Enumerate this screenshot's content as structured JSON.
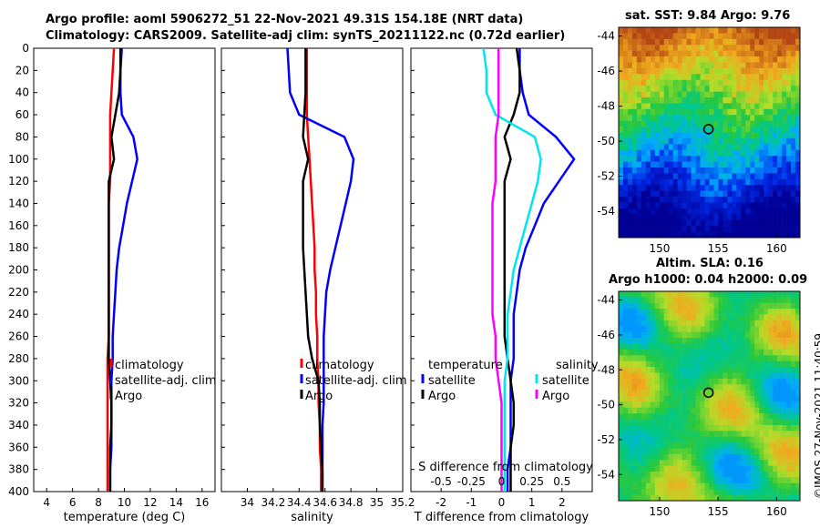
{
  "title": {
    "line1": "Argo profile: aoml 5906272_51 22-Nov-2021 49.31S 154.18E (NRT data)",
    "line2": "Climatology: CARS2009. Satellite-adj clim: synTS_20211122.nc (0.72d earlier)"
  },
  "map_sst_title": "sat. SST: 9.84 Argo: 9.76",
  "map_sla_title1": "Altim. SLA: 0.16",
  "map_sla_title2": "Argo h1000: 0.04 h2000: 0.09",
  "credit": "©IMOS 27-Nov-2021 11:40:59",
  "chart_data": [
    {
      "type": "line",
      "name": "temperature",
      "xlabel": "temperature (deg C)",
      "ylabel": "",
      "xlim": [
        3,
        17
      ],
      "ylim": [
        400,
        0
      ],
      "xticks": [
        "4",
        "6",
        "8",
        "10",
        "12",
        "14",
        "16"
      ],
      "xtick_values": [
        4,
        6,
        8,
        10,
        12,
        14,
        16
      ],
      "yticks": [
        0,
        20,
        40,
        60,
        80,
        100,
        120,
        140,
        160,
        180,
        200,
        220,
        240,
        260,
        280,
        300,
        320,
        340,
        360,
        380,
        400
      ],
      "legend": [
        "climatology",
        "satellite-adj. clim",
        "Argo"
      ],
      "series": [
        {
          "name": "climatology",
          "color": "#ff0000",
          "x": [
            9.2,
            9.1,
            9.0,
            8.9,
            8.9,
            8.9,
            8.9,
            8.8,
            8.8,
            8.8,
            8.8,
            8.8,
            8.8,
            8.8,
            8.7,
            8.7,
            8.7,
            8.7,
            8.7,
            8.7,
            8.7
          ],
          "y": [
            0,
            20,
            40,
            60,
            80,
            100,
            120,
            140,
            160,
            180,
            200,
            220,
            240,
            260,
            280,
            300,
            320,
            340,
            360,
            380,
            400
          ]
        },
        {
          "name": "satellite-adj. clim",
          "color": "#0000ff",
          "x": [
            9.8,
            9.7,
            9.7,
            9.8,
            10.7,
            11.0,
            10.6,
            10.2,
            9.9,
            9.6,
            9.4,
            9.3,
            9.2,
            9.1,
            9.1,
            9.0,
            9.0,
            9.0,
            9.0,
            8.9,
            8.9
          ],
          "y": [
            0,
            20,
            40,
            60,
            80,
            100,
            120,
            140,
            160,
            180,
            200,
            220,
            240,
            260,
            280,
            300,
            320,
            340,
            360,
            380,
            400
          ]
        },
        {
          "name": "Argo",
          "color": "#000000",
          "x": [
            9.7,
            9.7,
            9.6,
            9.3,
            9.0,
            9.2,
            8.8,
            8.8,
            8.8,
            8.8,
            8.8,
            8.8,
            8.8,
            8.8,
            8.8,
            8.9,
            9.0,
            9.0,
            8.9,
            8.9,
            8.9
          ],
          "y": [
            0,
            20,
            40,
            60,
            80,
            100,
            120,
            140,
            160,
            180,
            200,
            220,
            240,
            260,
            280,
            300,
            320,
            340,
            360,
            380,
            400
          ]
        }
      ]
    },
    {
      "type": "line",
      "name": "salinity",
      "xlabel": "salinity",
      "ylabel": "",
      "xlim": [
        33.8,
        35.2
      ],
      "ylim": [
        400,
        0
      ],
      "xticks": [
        "34",
        "34.2",
        "34.4",
        "34.6",
        "34.8",
        "35",
        "35.2"
      ],
      "xtick_values": [
        34,
        34.2,
        34.4,
        34.6,
        34.8,
        35,
        35.2
      ],
      "legend": [
        "climatology",
        "satellite-adj. clim",
        "Argo"
      ],
      "series": [
        {
          "name": "climatology",
          "color": "#ff0000",
          "x": [
            34.46,
            34.46,
            34.46,
            34.46,
            34.47,
            34.48,
            34.49,
            34.5,
            34.51,
            34.52,
            34.52,
            34.53,
            34.53,
            34.54,
            34.54,
            34.55,
            34.55,
            34.56,
            34.56,
            34.57,
            34.57
          ],
          "y": [
            0,
            20,
            40,
            60,
            80,
            100,
            120,
            140,
            160,
            180,
            200,
            220,
            240,
            260,
            280,
            300,
            320,
            340,
            360,
            380,
            400
          ]
        },
        {
          "name": "satellite-adj. clim",
          "color": "#0000ff",
          "x": [
            34.31,
            34.32,
            34.33,
            34.4,
            34.75,
            34.82,
            34.8,
            34.76,
            34.72,
            34.68,
            34.64,
            34.61,
            34.6,
            34.59,
            34.59,
            34.59,
            34.59,
            34.58,
            34.58,
            34.58,
            34.58
          ],
          "y": [
            0,
            20,
            40,
            60,
            80,
            100,
            120,
            140,
            160,
            180,
            200,
            220,
            240,
            260,
            280,
            300,
            320,
            340,
            360,
            380,
            400
          ]
        },
        {
          "name": "Argo",
          "color": "#000000",
          "x": [
            34.45,
            34.45,
            34.45,
            34.44,
            34.43,
            34.47,
            34.43,
            34.43,
            34.43,
            34.43,
            34.44,
            34.45,
            34.46,
            34.47,
            34.5,
            34.55,
            34.56,
            34.56,
            34.57,
            34.58,
            34.58
          ],
          "y": [
            0,
            20,
            40,
            60,
            80,
            100,
            120,
            140,
            160,
            180,
            200,
            220,
            240,
            260,
            280,
            300,
            320,
            340,
            360,
            380,
            400
          ]
        }
      ]
    },
    {
      "type": "line",
      "name": "difference",
      "xlabel": "T difference from climatology",
      "xlabel_top": "S difference from climatology",
      "xlim": [
        -3,
        3
      ],
      "ylim": [
        400,
        0
      ],
      "xticks": [
        "-2",
        "-1",
        "0",
        "1",
        "2"
      ],
      "xtick_values": [
        -2,
        -1,
        0,
        1,
        2
      ],
      "xticks_top": [
        "-0.5",
        "-0.25",
        "0",
        "0.25",
        "0.5"
      ],
      "xtick_top_values": [
        -2,
        -1,
        0,
        1,
        2
      ],
      "legend_temperature_title": "temperature",
      "legend_salinity_title": "salinity",
      "legend_temperature": [
        "satellite",
        "Argo"
      ],
      "legend_salinity": [
        "satellite",
        "Argo"
      ],
      "series": [
        {
          "name": "T satellite",
          "color": "#0000ff",
          "x": [
            0.6,
            0.6,
            0.7,
            0.9,
            1.8,
            2.4,
            1.9,
            1.4,
            1.1,
            0.8,
            0.6,
            0.5,
            0.4,
            0.4,
            0.4,
            0.3,
            0.3,
            0.3,
            0.3,
            0.2,
            0.2
          ],
          "y": [
            0,
            20,
            40,
            60,
            80,
            100,
            120,
            140,
            160,
            180,
            200,
            220,
            240,
            260,
            280,
            300,
            320,
            340,
            360,
            380,
            400
          ]
        },
        {
          "name": "T Argo",
          "color": "#000000",
          "x": [
            0.5,
            0.6,
            0.6,
            0.4,
            0.1,
            0.3,
            0.1,
            0.1,
            0.1,
            0.1,
            0.1,
            0.1,
            0.1,
            0.1,
            0.2,
            0.3,
            0.4,
            0.4,
            0.3,
            0.3,
            0.3
          ],
          "y": [
            0,
            20,
            40,
            60,
            80,
            100,
            120,
            140,
            160,
            180,
            200,
            220,
            240,
            260,
            280,
            300,
            320,
            340,
            360,
            380,
            400
          ]
        },
        {
          "name": "S satellite",
          "color": "#00e5ee",
          "x": [
            -0.6,
            -0.5,
            -0.5,
            -0.2,
            1.1,
            1.3,
            1.2,
            1.0,
            0.8,
            0.6,
            0.4,
            0.3,
            0.2,
            0.2,
            0.2,
            0.1,
            0.1,
            0.1,
            0.1,
            0.1,
            0.1
          ],
          "y": [
            0,
            20,
            40,
            60,
            80,
            100,
            120,
            140,
            160,
            180,
            200,
            220,
            240,
            260,
            280,
            300,
            320,
            340,
            360,
            380,
            400
          ]
        },
        {
          "name": "S Argo",
          "color": "#ff00ff",
          "x": [
            -0.1,
            -0.1,
            -0.1,
            -0.1,
            -0.2,
            -0.2,
            -0.2,
            -0.3,
            -0.3,
            -0.3,
            -0.3,
            -0.3,
            -0.3,
            -0.2,
            -0.2,
            -0.1,
            0.0,
            0.0,
            0.0,
            0.0,
            0.0
          ],
          "y": [
            0,
            20,
            40,
            60,
            80,
            100,
            120,
            140,
            160,
            180,
            200,
            220,
            240,
            260,
            280,
            300,
            320,
            340,
            360,
            380,
            400
          ]
        }
      ]
    },
    {
      "type": "heatmap",
      "name": "sst_map",
      "title": "sat. SST: 9.84 Argo: 9.76",
      "xlim": [
        146.5,
        162
      ],
      "ylim": [
        -55.5,
        -43.5
      ],
      "xticks": [
        "150",
        "155",
        "160"
      ],
      "xtick_values": [
        150,
        155,
        160
      ],
      "yticks": [
        "-44",
        "-46",
        "-48",
        "-50",
        "-52",
        "-54"
      ],
      "ytick_values": [
        -44,
        -46,
        -48,
        -50,
        -52,
        -54
      ],
      "marker": {
        "lon": 154.18,
        "lat": -49.31
      }
    },
    {
      "type": "heatmap",
      "name": "sla_map",
      "title": "Altim. SLA: 0.16",
      "xlim": [
        146.5,
        162
      ],
      "ylim": [
        -55.5,
        -43.5
      ],
      "xticks": [
        "150",
        "155",
        "160"
      ],
      "xtick_values": [
        150,
        155,
        160
      ],
      "yticks": [
        "-44",
        "-46",
        "-48",
        "-50",
        "-52",
        "-54"
      ],
      "ytick_values": [
        -44,
        -46,
        -48,
        -50,
        -52,
        -54
      ],
      "marker": {
        "lon": 154.18,
        "lat": -49.31
      }
    }
  ]
}
